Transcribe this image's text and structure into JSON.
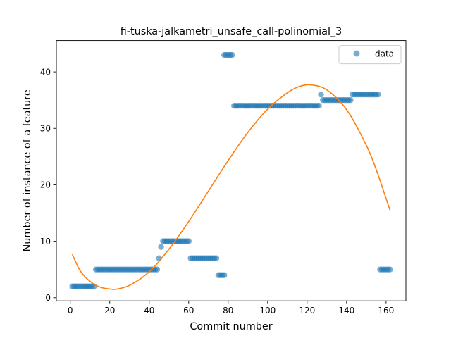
{
  "chart_data": {
    "type": "scatter",
    "title": "fi-tuska-jalkametri_unsafe_call-polinomial_3",
    "xlabel": "Commit number",
    "ylabel": "Number of instance of a feature",
    "xlim": [
      -7.05,
      170.05
    ],
    "ylim": [
      -0.55,
      45.55
    ],
    "xticks": [
      0,
      20,
      40,
      60,
      80,
      100,
      120,
      140,
      160
    ],
    "yticks": [
      0,
      10,
      20,
      30,
      40
    ],
    "grid": false,
    "legend": {
      "position": "top-right",
      "entries": [
        "data"
      ]
    },
    "colors": {
      "data": "#1f77b4",
      "fit": "#ff7f0e"
    },
    "series": [
      {
        "name": "data",
        "kind": "scatter",
        "segments": [
          {
            "x_start": 1,
            "x_end": 12,
            "y": 2
          },
          {
            "x_start": 13,
            "x_end": 44,
            "y": 5
          },
          {
            "x_start": 45,
            "x_end": 45,
            "y": 7
          },
          {
            "x_start": 46,
            "x_end": 46,
            "y": 9
          },
          {
            "x_start": 47,
            "x_end": 60,
            "y": 10
          },
          {
            "x_start": 61,
            "x_end": 74,
            "y": 7
          },
          {
            "x_start": 75,
            "x_end": 78,
            "y": 4
          },
          {
            "x_start": 78,
            "x_end": 82,
            "y": 43
          },
          {
            "x_start": 83,
            "x_end": 126,
            "y": 34
          },
          {
            "x_start": 127,
            "x_end": 127,
            "y": 36
          },
          {
            "x_start": 128,
            "x_end": 142,
            "y": 35
          },
          {
            "x_start": 143,
            "x_end": 156,
            "y": 36
          },
          {
            "x_start": 157,
            "x_end": 162,
            "y": 5
          }
        ]
      },
      {
        "kind": "line",
        "x_range": [
          1,
          162
        ],
        "points": [
          [
            1,
            7.7
          ],
          [
            5,
            4.8
          ],
          [
            10,
            2.9
          ],
          [
            15,
            1.9
          ],
          [
            20,
            1.55
          ],
          [
            23,
            1.5
          ],
          [
            30,
            2.2
          ],
          [
            40,
            4.6
          ],
          [
            50,
            8.6
          ],
          [
            60,
            13.5
          ],
          [
            70,
            18.9
          ],
          [
            80,
            24.3
          ],
          [
            90,
            29.3
          ],
          [
            100,
            33.4
          ],
          [
            110,
            36.3
          ],
          [
            116,
            37.4
          ],
          [
            122,
            37.7
          ],
          [
            130,
            36.8
          ],
          [
            140,
            33.3
          ],
          [
            150,
            27.0
          ],
          [
            155,
            22.7
          ],
          [
            162,
            15.5
          ]
        ]
      }
    ]
  }
}
